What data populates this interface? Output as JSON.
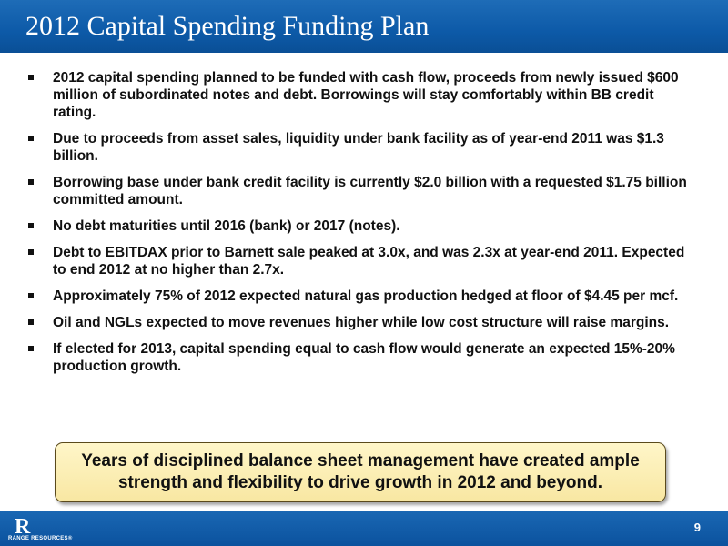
{
  "header": {
    "title": "2012 Capital Spending Funding Plan"
  },
  "bullets": [
    "2012 capital spending planned to be funded with cash flow, proceeds from newly issued $600 million of subordinated notes and debt. Borrowings will stay comfortably within BB credit rating.",
    "Due to proceeds from asset sales, liquidity under bank facility as of year-end 2011 was $1.3 billion.",
    "Borrowing base under bank credit facility is currently $2.0 billion with a requested $1.75 billion committed amount.",
    "No debt maturities until 2016 (bank) or 2017 (notes).",
    "Debt to EBITDAX prior to Barnett sale peaked at 3.0x, and was 2.3x at year-end 2011. Expected to end 2012 at no higher than 2.7x.",
    "Approximately 75% of 2012 expected natural gas production hedged at floor of $4.45 per mcf.",
    "Oil and NGLs expected to move revenues higher while low cost structure will raise margins.",
    "If elected for 2013, capital spending equal to cash flow would generate an expected 15%-20% production growth."
  ],
  "callout": "Years of disciplined balance sheet management have created ample strength and flexibility to drive growth in 2012 and beyond.",
  "footer": {
    "logo_mark": "R",
    "logo_text": "RANGE RESOURCES®",
    "page_number": "9"
  },
  "colors": {
    "header_blue": "#0d5aa8",
    "callout_fill": "#f8e7a2"
  }
}
